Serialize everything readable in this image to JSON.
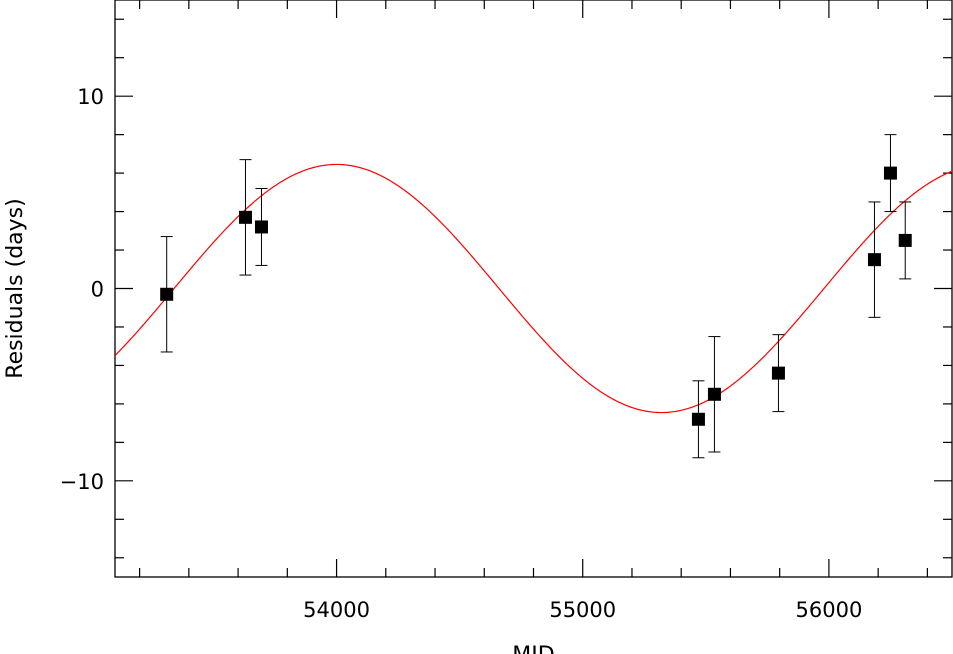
{
  "chart_data": {
    "type": "scatter",
    "xlabel": "MJD",
    "ylabel": "Residuals  (days)",
    "xlim": [
      53100,
      56500
    ],
    "ylim": [
      -15,
      15
    ],
    "x_major_ticks": [
      54000,
      55000,
      56000
    ],
    "x_minor_step": 200,
    "y_major_ticks": [
      -10,
      0,
      10
    ],
    "y_minor_step": 2,
    "grid": false,
    "points_color": "#000000",
    "fit_color": "#ff0000",
    "series": [
      {
        "kind": "points",
        "x": [
          53310,
          53630,
          53695,
          55470,
          55535,
          55795,
          56185,
          56250,
          56310
        ],
        "y": [
          -0.3,
          3.7,
          3.2,
          -6.8,
          -5.5,
          -4.4,
          1.5,
          6.0,
          2.5
        ],
        "yerr": [
          3.0,
          3.0,
          2.0,
          2.0,
          3.0,
          2.0,
          3.0,
          2.0,
          2.0
        ]
      },
      {
        "kind": "curve",
        "model": "sinusoid",
        "amplitude": 6.45,
        "period": 2640,
        "center": 54000,
        "offset": 0
      }
    ]
  }
}
